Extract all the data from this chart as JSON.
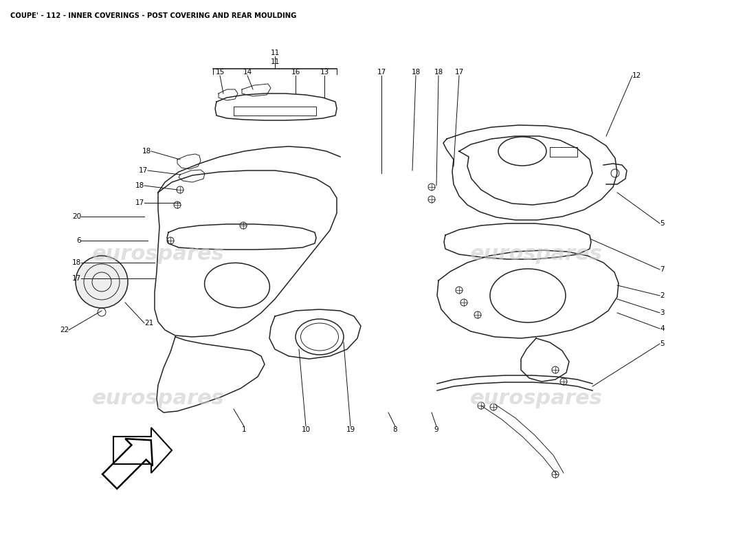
{
  "title": "COUPE' - 112 - INNER COVERINGS - POST COVERING AND REAR MOULDING",
  "title_fontsize": 7.2,
  "bg_color": "#ffffff",
  "watermark_text": "eurospares",
  "watermark_color": "#cccccc",
  "watermark_fontsize": 22,
  "part_label_fontsize": 7.5,
  "line_color": "#111111",
  "line_color_parts": "#222222",
  "lw_main": 1.1,
  "lw_thin": 0.7
}
